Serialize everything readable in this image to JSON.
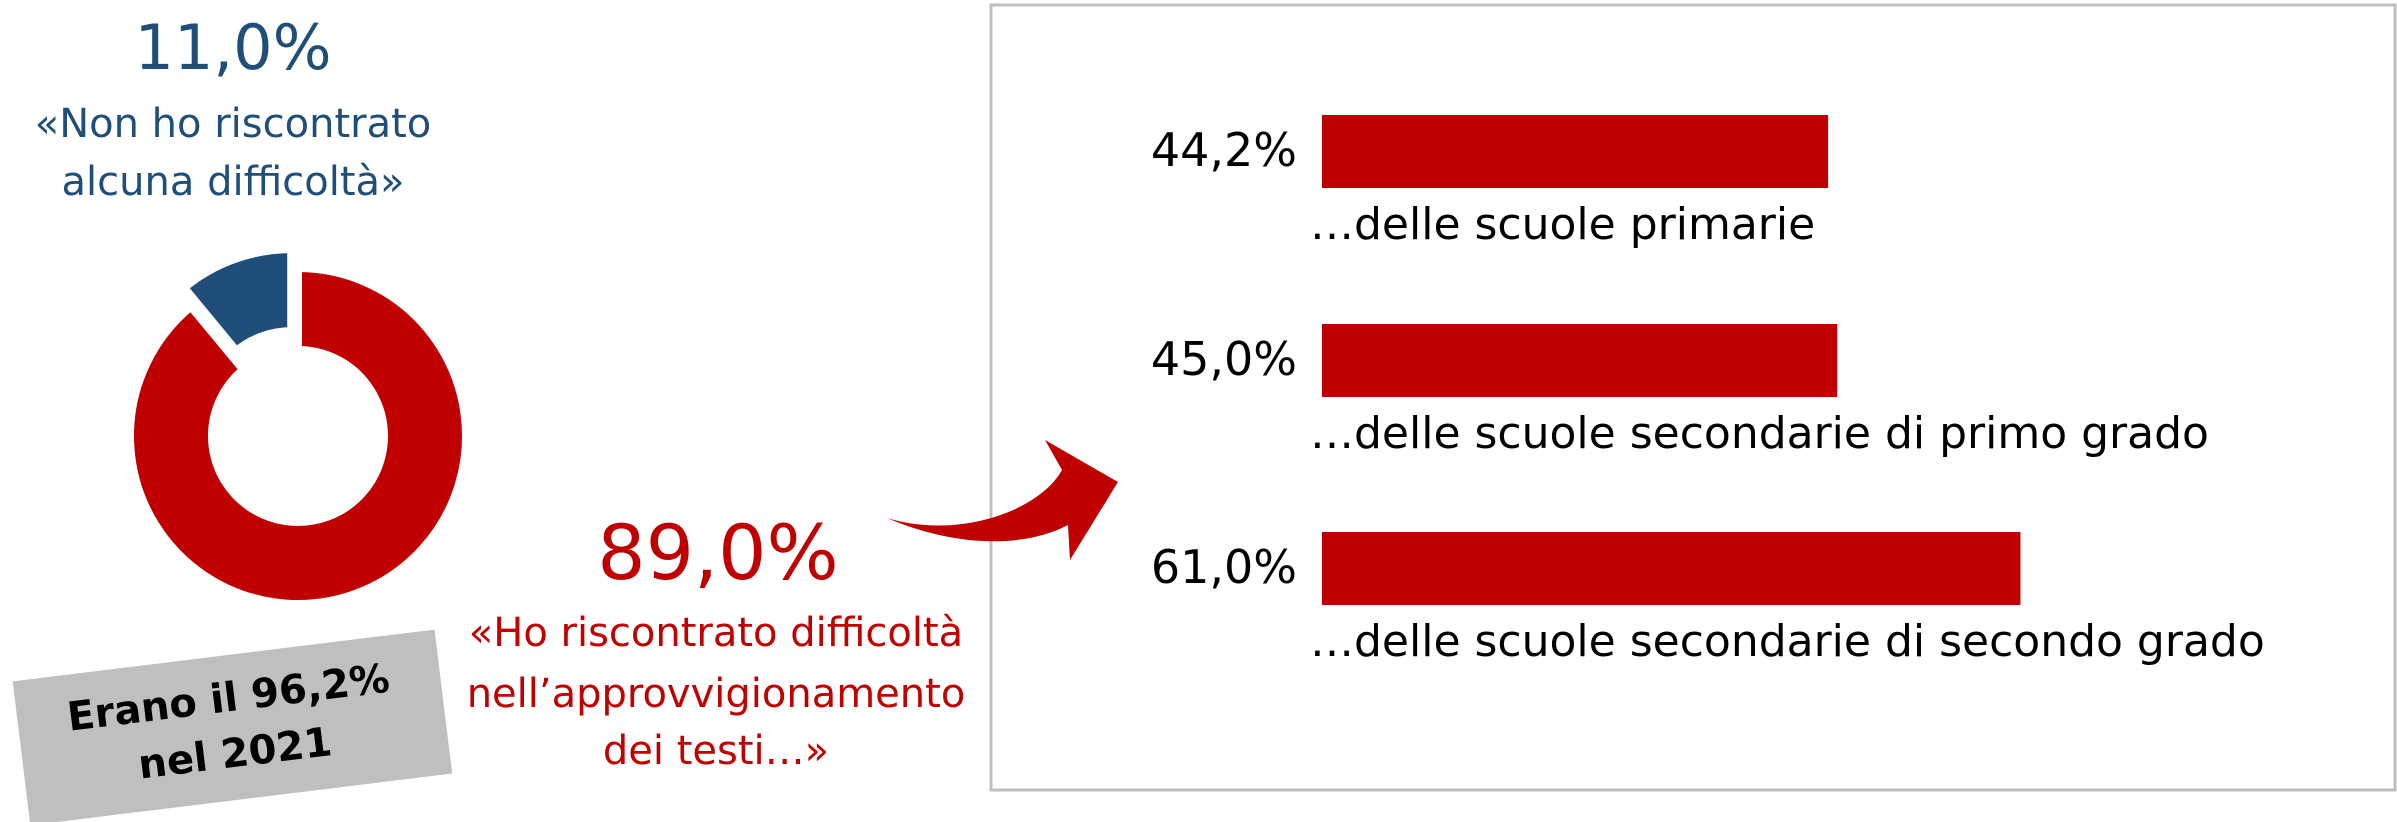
{
  "chart_data": [
    {
      "type": "donut",
      "values": [
        11.0,
        89.0
      ],
      "value_labels": [
        "11,0%",
        "89,0%"
      ],
      "labels": [
        [
          "«Non ho riscontrato",
          "alcuna difficoltà»"
        ],
        [
          "«Ho riscontrato difficoltà",
          "nell’approvvigionamento",
          "dei testi…»"
        ]
      ],
      "colors": [
        "#1f4e79",
        "#c00000"
      ],
      "annotation": [
        "Erano il 96,2%",
        "nel 2021"
      ]
    },
    {
      "type": "barh",
      "categories": [
        "…delle scuole primarie",
        "…delle scuole secondarie di primo grado",
        "…delle scuole secondarie di secondo grado"
      ],
      "values": [
        44.2,
        45.0,
        61.0
      ],
      "value_labels": [
        "44,2%",
        "45,0%",
        "61,0%"
      ],
      "color": "#c00000"
    }
  ]
}
